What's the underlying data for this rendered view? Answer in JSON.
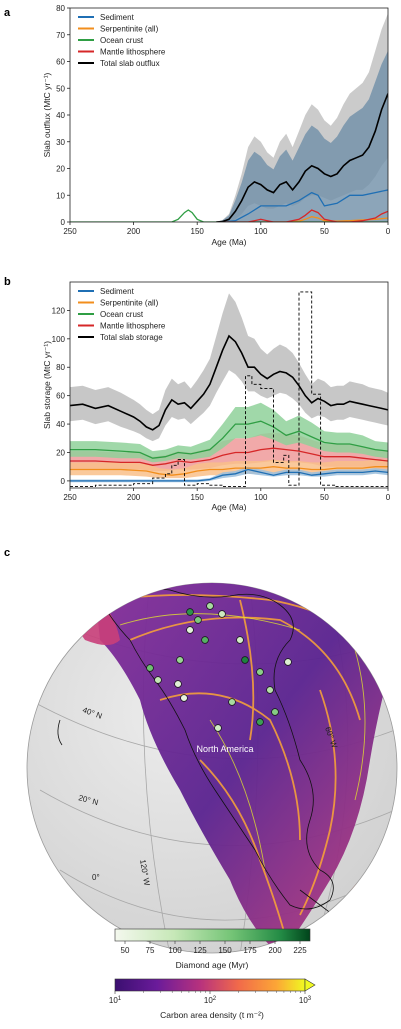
{
  "chart_data": [
    {
      "panel": "a",
      "type": "area",
      "xlabel": "Age (Ma)",
      "ylabel": "Slab outflux (MtC yr⁻¹)",
      "xlim": [
        250,
        0
      ],
      "ylim": [
        0,
        80
      ],
      "xticks": [
        250,
        200,
        150,
        100,
        50,
        0
      ],
      "yticks": [
        0,
        10,
        20,
        30,
        40,
        50,
        60,
        70,
        80
      ],
      "legend_position": "top-left",
      "series": [
        {
          "name": "Sediment",
          "color": "#1f6fb4",
          "x": [
            130,
            120,
            110,
            100,
            90,
            80,
            70,
            60,
            55,
            50,
            40,
            30,
            20,
            10,
            0
          ],
          "y": [
            0,
            0.5,
            3,
            6,
            6,
            6,
            8,
            11,
            10,
            6,
            7,
            10,
            10,
            11,
            12
          ]
        },
        {
          "name": "Serpentinite (all)",
          "color": "#f28e1c",
          "x": [
            100,
            90,
            80,
            70,
            65,
            60,
            55,
            50,
            40,
            30,
            20,
            10,
            0
          ],
          "y": [
            0,
            0,
            0,
            0.3,
            1,
            2,
            1.5,
            0.5,
            0.3,
            0.5,
            0.8,
            1,
            1.5
          ]
        },
        {
          "name": "Ocean crust",
          "color": "#2f9e44",
          "x": [
            250,
            170,
            165,
            160,
            157,
            154,
            150,
            145,
            130,
            0
          ],
          "y": [
            0,
            0,
            1,
            3.5,
            4.5,
            3.5,
            1,
            0,
            0,
            0
          ]
        },
        {
          "name": "Mantle lithosphere",
          "color": "#d62728",
          "x": [
            130,
            110,
            105,
            100,
            95,
            90,
            80,
            70,
            65,
            60,
            55,
            50,
            40,
            30,
            20,
            10,
            5,
            0
          ],
          "y": [
            0,
            0,
            0.5,
            1,
            0.5,
            0,
            0,
            1,
            2.5,
            4.5,
            3.5,
            1,
            0,
            0,
            0.5,
            1.5,
            3,
            4
          ]
        },
        {
          "name": "Total slab outflux",
          "color": "#000000",
          "x": [
            135,
            130,
            125,
            120,
            115,
            110,
            105,
            100,
            95,
            90,
            85,
            80,
            75,
            70,
            65,
            60,
            55,
            50,
            45,
            40,
            35,
            30,
            25,
            20,
            15,
            10,
            5,
            0
          ],
          "y": [
            0,
            0.2,
            1,
            4,
            8,
            13,
            15,
            14,
            12,
            11,
            14,
            15,
            12,
            15,
            19,
            21,
            20,
            18,
            17,
            18,
            21,
            23,
            24,
            25,
            28,
            34,
            42,
            48
          ],
          "band_lower": [
            0,
            0,
            0,
            1,
            3,
            6,
            7,
            6,
            5,
            5,
            6,
            7,
            6,
            7,
            9,
            10,
            10,
            9,
            8,
            9,
            10,
            11,
            12,
            12,
            14,
            17,
            21,
            24
          ],
          "band_upper": [
            0,
            0.8,
            3,
            10,
            18,
            28,
            32,
            30,
            26,
            24,
            30,
            33,
            28,
            34,
            40,
            44,
            42,
            38,
            36,
            39,
            44,
            48,
            50,
            52,
            56,
            64,
            72,
            78
          ]
        }
      ]
    },
    {
      "panel": "b",
      "type": "line",
      "xlabel": "Age (Ma)",
      "ylabel": "Slab storage (MtC yr⁻¹)",
      "xlim": [
        250,
        0
      ],
      "ylim": [
        -5,
        140
      ],
      "xticks": [
        250,
        200,
        150,
        100,
        50,
        0
      ],
      "yticks": [
        0,
        20,
        40,
        60,
        80,
        100,
        120
      ],
      "legend_position": "top-left",
      "series": [
        {
          "name": "Sediment",
          "color": "#1f6fb4",
          "x": [
            250,
            200,
            180,
            170,
            160,
            150,
            140,
            130,
            120,
            110,
            100,
            90,
            80,
            70,
            60,
            50,
            40,
            30,
            20,
            10,
            0
          ],
          "y": [
            0,
            0,
            0,
            0,
            0,
            0,
            1,
            4,
            5,
            8,
            6,
            4,
            6,
            6,
            4,
            5,
            6,
            6,
            6,
            7,
            6
          ],
          "band_lower": [
            -1,
            -1,
            -1,
            -1,
            -1,
            -1,
            0,
            2,
            3,
            5,
            4,
            3,
            4,
            4,
            3,
            3,
            4,
            4,
            4,
            5,
            4
          ],
          "band_upper": [
            1,
            1,
            1,
            1,
            1,
            1,
            2,
            6,
            7,
            10,
            8,
            6,
            8,
            8,
            6,
            7,
            8,
            8,
            8,
            9,
            8
          ]
        },
        {
          "name": "Serpentinite (all)",
          "color": "#f28e1c",
          "x": [
            250,
            230,
            210,
            190,
            180,
            170,
            160,
            150,
            140,
            130,
            120,
            110,
            100,
            90,
            80,
            70,
            60,
            50,
            40,
            30,
            20,
            10,
            0
          ],
          "y": [
            8,
            8,
            8,
            7,
            5,
            4,
            5,
            7,
            8,
            8,
            9,
            9,
            9,
            10,
            9,
            9,
            8,
            8,
            9,
            9,
            9,
            10,
            10
          ],
          "band_lower": [
            4,
            4,
            4,
            3,
            2,
            2,
            2,
            3,
            4,
            4,
            5,
            5,
            5,
            5,
            5,
            5,
            4,
            4,
            5,
            5,
            5,
            6,
            6
          ],
          "band_upper": [
            13,
            13,
            13,
            12,
            9,
            8,
            9,
            12,
            13,
            13,
            14,
            14,
            14,
            15,
            14,
            14,
            13,
            13,
            14,
            14,
            14,
            15,
            15
          ]
        },
        {
          "name": "Ocean crust",
          "color": "#2f9e44",
          "x": [
            250,
            230,
            210,
            195,
            185,
            175,
            165,
            155,
            140,
            130,
            120,
            110,
            100,
            90,
            80,
            70,
            60,
            50,
            40,
            30,
            20,
            10,
            0
          ],
          "y": [
            22,
            22,
            21,
            20,
            16,
            17,
            20,
            19,
            22,
            30,
            40,
            40,
            42,
            38,
            32,
            35,
            31,
            27,
            26,
            26,
            24,
            22,
            21
          ],
          "band_lower": [
            17,
            17,
            16,
            16,
            13,
            14,
            16,
            15,
            17,
            23,
            30,
            30,
            32,
            29,
            25,
            27,
            24,
            21,
            20,
            20,
            19,
            17,
            16
          ],
          "band_upper": [
            28,
            28,
            27,
            26,
            21,
            22,
            25,
            24,
            29,
            40,
            52,
            52,
            55,
            50,
            42,
            46,
            41,
            35,
            34,
            34,
            32,
            28,
            27
          ]
        },
        {
          "name": "Mantle lithosphere",
          "color": "#d62728",
          "x": [
            250,
            230,
            210,
            195,
            185,
            175,
            165,
            155,
            140,
            130,
            120,
            110,
            100,
            90,
            80,
            70,
            60,
            50,
            40,
            30,
            20,
            10,
            0
          ],
          "y": [
            14,
            14,
            13,
            13,
            11,
            12,
            14,
            13,
            15,
            18,
            20,
            20,
            22,
            23,
            22,
            21,
            19,
            17,
            17,
            17,
            16,
            15,
            14
          ],
          "band_lower": [
            8,
            8,
            8,
            8,
            7,
            7,
            8,
            8,
            9,
            11,
            12,
            12,
            13,
            14,
            13,
            13,
            12,
            10,
            10,
            10,
            10,
            9,
            8
          ],
          "band_upper": [
            21,
            21,
            20,
            20,
            17,
            18,
            21,
            20,
            23,
            28,
            30,
            30,
            33,
            34,
            33,
            32,
            29,
            26,
            26,
            26,
            24,
            22,
            21
          ]
        },
        {
          "name": "Total slab storage",
          "color": "#000000",
          "x": [
            250,
            240,
            230,
            220,
            210,
            200,
            195,
            190,
            185,
            180,
            175,
            170,
            165,
            160,
            155,
            150,
            145,
            140,
            135,
            130,
            125,
            120,
            115,
            110,
            105,
            100,
            95,
            90,
            85,
            80,
            75,
            70,
            65,
            60,
            55,
            50,
            45,
            40,
            35,
            30,
            25,
            20,
            15,
            10,
            5,
            0
          ],
          "y": [
            53,
            54,
            51,
            53,
            49,
            45,
            42,
            38,
            36,
            39,
            50,
            57,
            54,
            55,
            51,
            56,
            61,
            68,
            80,
            92,
            102,
            98,
            90,
            80,
            80,
            75,
            72,
            75,
            77,
            76,
            73,
            67,
            60,
            55,
            58,
            56,
            53,
            54,
            54,
            56,
            55,
            54,
            53,
            52,
            51,
            50
          ],
          "band_lower": [
            42,
            43,
            40,
            42,
            38,
            35,
            33,
            30,
            28,
            30,
            39,
            45,
            43,
            44,
            40,
            44,
            48,
            53,
            62,
            70,
            78,
            75,
            70,
            63,
            63,
            60,
            58,
            60,
            62,
            61,
            58,
            54,
            48,
            44,
            46,
            45,
            42,
            43,
            43,
            45,
            44,
            43,
            42,
            41,
            40,
            39
          ],
          "band_upper": [
            66,
            67,
            64,
            66,
            62,
            57,
            54,
            50,
            47,
            50,
            64,
            72,
            68,
            70,
            65,
            71,
            78,
            86,
            102,
            118,
            132,
            126,
            115,
            102,
            100,
            93,
            89,
            93,
            96,
            94,
            90,
            83,
            75,
            68,
            72,
            70,
            66,
            67,
            67,
            70,
            69,
            68,
            66,
            65,
            64,
            62
          ]
        },
        {
          "name": "",
          "style": "dashed-step",
          "color": "#000000",
          "x": [
            250,
            230,
            230,
            200,
            200,
            185,
            185,
            175,
            175,
            170,
            170,
            165,
            165,
            160,
            160,
            150,
            150,
            140,
            140,
            130,
            130,
            112,
            112,
            107,
            107,
            100,
            100,
            90,
            90,
            82,
            82,
            78,
            78,
            70,
            70,
            60,
            60,
            53,
            53,
            42,
            42,
            0
          ],
          "y": [
            -4,
            -4,
            -3,
            -3,
            -2,
            -2,
            2,
            2,
            5,
            5,
            11,
            11,
            15,
            15,
            -3,
            -3,
            -2,
            -2,
            -3,
            -3,
            -4,
            -4,
            74,
            74,
            68,
            68,
            65,
            65,
            13,
            13,
            18,
            18,
            -3,
            -3,
            133,
            133,
            61,
            61,
            -3,
            -3,
            -4,
            -4
          ]
        }
      ]
    },
    {
      "panel": "c",
      "type": "map",
      "label": "North America",
      "graticule_labels": [
        "40° N",
        "20° N",
        "0°",
        "120° W",
        "60° W"
      ],
      "colorbars": [
        {
          "label": "Diamond age (Myr)",
          "ticks": [
            "50",
            "75",
            "100",
            "125",
            "150",
            "175",
            "200",
            "225"
          ],
          "range": [
            40,
            235
          ],
          "colors": [
            "#f4f8ee",
            "#c7e8b8",
            "#74c476",
            "#238b45",
            "#00441b"
          ]
        },
        {
          "label": "Carbon area density (t m⁻²)",
          "ticks": [
            {
              "base": "10",
              "exp": "1"
            },
            {
              "base": "10",
              "exp": "2"
            },
            {
              "base": "10",
              "exp": "3"
            }
          ],
          "scale": "log",
          "colors": [
            "#3b0f70",
            "#6a1b9a",
            "#b8327d",
            "#f16a4a",
            "#fca636",
            "#f0f921"
          ]
        }
      ],
      "diamond_sites": [
        {
          "age": 200
        },
        {
          "age": 150
        },
        {
          "age": 120
        },
        {
          "age": 90
        },
        {
          "age": 60
        },
        {
          "age": 175
        },
        {
          "age": 130
        },
        {
          "age": 80
        },
        {
          "age": 210
        },
        {
          "age": 140
        },
        {
          "age": 110
        },
        {
          "age": 70
        },
        {
          "age": 160
        },
        {
          "age": 100
        },
        {
          "age": 55
        },
        {
          "age": 190
        },
        {
          "age": 145
        },
        {
          "age": 85
        },
        {
          "age": 120
        },
        {
          "age": 65
        }
      ]
    }
  ]
}
